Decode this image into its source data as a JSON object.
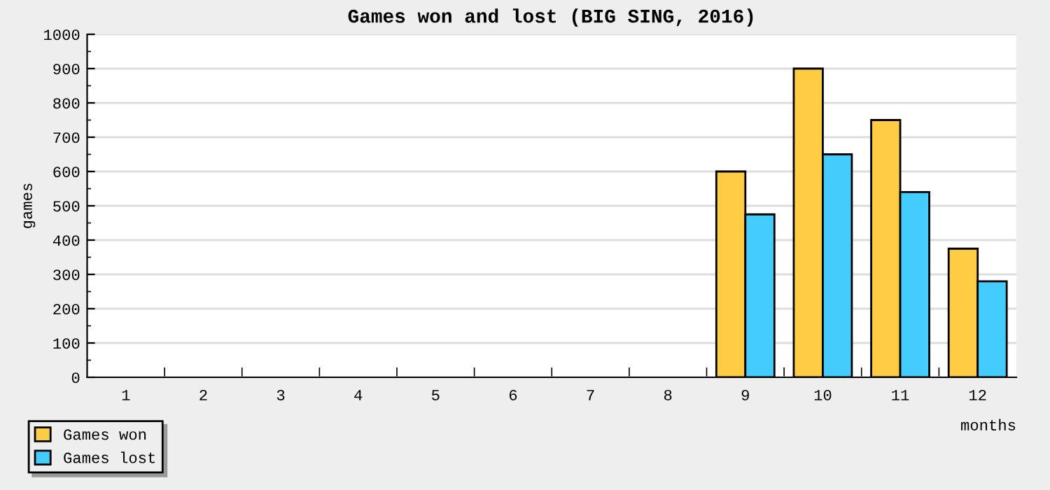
{
  "chart_data": {
    "type": "bar",
    "title": "Games won and lost (BIG SING, 2016)",
    "xlabel": "months",
    "ylabel": "games",
    "categories": [
      "1",
      "2",
      "3",
      "4",
      "5",
      "6",
      "7",
      "8",
      "9",
      "10",
      "11",
      "12"
    ],
    "series": [
      {
        "name": "Games won",
        "color": "#ffcc44",
        "values": [
          null,
          null,
          null,
          null,
          null,
          null,
          null,
          null,
          600,
          900,
          750,
          375
        ]
      },
      {
        "name": "Games lost",
        "color": "#44ccff",
        "values": [
          null,
          null,
          null,
          null,
          null,
          null,
          null,
          null,
          475,
          650,
          540,
          280
        ]
      }
    ],
    "ylim": [
      0,
      1000
    ],
    "yticks": [
      0,
      100,
      200,
      300,
      400,
      500,
      600,
      700,
      800,
      900,
      1000
    ],
    "grid": "y",
    "legend": "bottom left"
  }
}
